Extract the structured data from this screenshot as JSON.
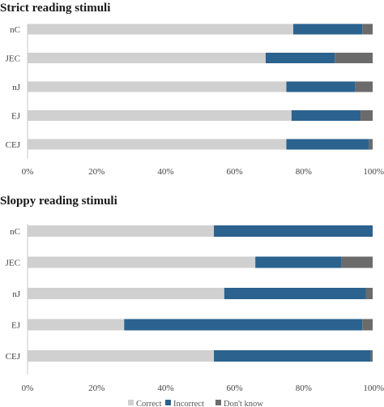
{
  "chart_data": [
    {
      "type": "bar",
      "orientation": "horizontal",
      "stacked": true,
      "percent": true,
      "title": "Strict reading stimuli",
      "categories": [
        "nC",
        "JEC",
        "nJ",
        "EJ",
        "CEJ"
      ],
      "series": [
        {
          "name": "Correct",
          "values": [
            77,
            69,
            75,
            76.5,
            75
          ]
        },
        {
          "name": "Incorrect",
          "values": [
            20,
            20,
            20,
            20,
            24
          ]
        },
        {
          "name": "Don't know",
          "values": [
            3,
            11,
            5,
            3.5,
            1
          ]
        }
      ],
      "xticks": [
        "0%",
        "20%",
        "40%",
        "60%",
        "80%",
        "100%"
      ],
      "xlim": [
        0,
        100
      ],
      "grid": false
    },
    {
      "type": "bar",
      "orientation": "horizontal",
      "stacked": true,
      "percent": true,
      "title": "Sloppy reading stimuli",
      "categories": [
        "nC",
        "JEC",
        "nJ",
        "EJ",
        "CEJ"
      ],
      "series": [
        {
          "name": "Correct",
          "values": [
            54,
            66,
            57,
            28,
            54
          ]
        },
        {
          "name": "Incorrect",
          "values": [
            46,
            25,
            41,
            69,
            45.5
          ]
        },
        {
          "name": "Don't know",
          "values": [
            0,
            9,
            2,
            3,
            0.5
          ]
        }
      ],
      "xticks": [
        "0%",
        "20%",
        "40%",
        "60%",
        "80%",
        "100%"
      ],
      "xlim": [
        0,
        100
      ],
      "grid": false
    }
  ],
  "legend": {
    "placement": "bottom",
    "items": [
      "Correct",
      "Incorrect",
      "Don't know"
    ]
  },
  "colors": {
    "correct": "#d0d0d0",
    "incorrect": "#2b628e",
    "dont_know": "#6b6b6b",
    "axis": "#c8c8c8"
  }
}
